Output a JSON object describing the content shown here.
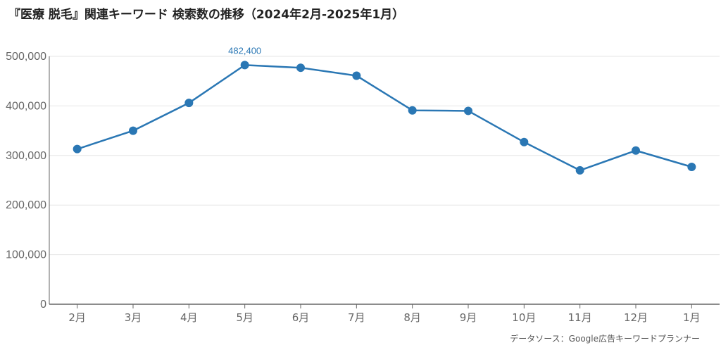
{
  "title": "『医療 脱毛』関連キーワード 検索数の推移（2024年2月-2025年1月）",
  "source": "データソース：Google広告キーワードプランナー",
  "colors": {
    "line": "#2a77b4",
    "axis": "#666666",
    "grid": "#e6e6e6",
    "tick_text": "#666666"
  },
  "chart_data": {
    "type": "line",
    "title": "『医療 脱毛』関連キーワード 検索数の推移（2024年2月-2025年1月）",
    "xlabel": "",
    "ylabel": "",
    "categories": [
      "2月",
      "3月",
      "4月",
      "5月",
      "6月",
      "7月",
      "8月",
      "9月",
      "10月",
      "11月",
      "12月",
      "1月"
    ],
    "series": [
      {
        "values": [
          313000,
          350000,
          406000,
          482400,
          477000,
          461000,
          391000,
          390000,
          327000,
          270000,
          310000,
          277000
        ]
      }
    ],
    "ylim": [
      0,
      500000
    ],
    "yticks": [
      0,
      100000,
      200000,
      300000,
      400000,
      500000
    ],
    "ytick_labels": [
      "0",
      "100,000",
      "200,000",
      "300,000",
      "400,000",
      "500,000"
    ],
    "annotations": [
      {
        "category": "5月",
        "value": 482400,
        "text": "482,400"
      }
    ],
    "grid": true,
    "legend": "none"
  }
}
